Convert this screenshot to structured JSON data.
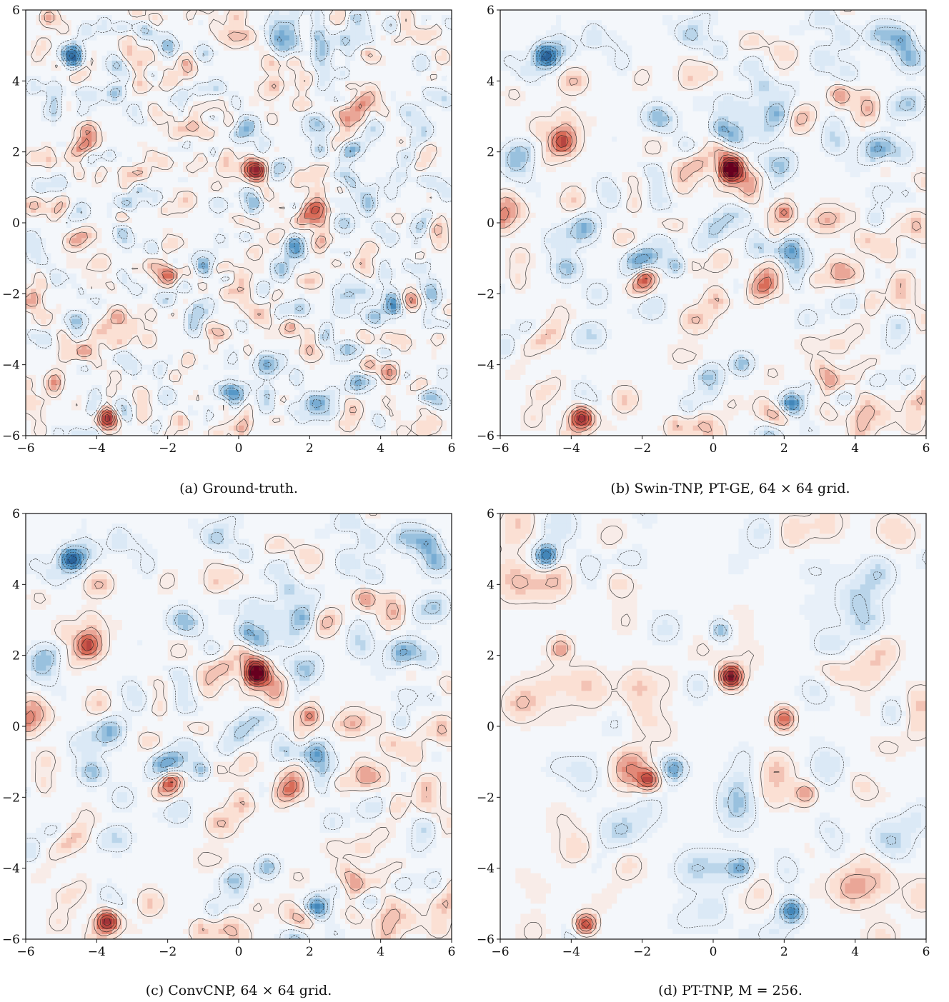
{
  "colors": {
    "blue_dark": "#08306b",
    "blue": "#4a90c2",
    "blue_light": "#dbe9f6",
    "neutral": "#f4f7fb",
    "red_light": "#fbe0d4",
    "red": "#d6604d",
    "red_dark": "#67001f",
    "contour": "#222222"
  },
  "chart_data": [
    {
      "type": "heatmap",
      "title": "(a) Ground-truth.",
      "xlim": [
        -6,
        6
      ],
      "ylim": [
        -6,
        6
      ],
      "xticks": [
        "−6",
        "−4",
        "−2",
        "0",
        "2",
        "4",
        "6"
      ],
      "yticks": [
        "−6",
        "−4",
        "−2",
        "0",
        "2",
        "4",
        "6"
      ],
      "smoothness": "high-frequency",
      "features": [
        {
          "x": -4.7,
          "y": 4.7,
          "value": -2.6
        },
        {
          "x": 0.5,
          "y": 1.5,
          "value": 3.0
        },
        {
          "x": -3.7,
          "y": -5.5,
          "value": 2.6
        },
        {
          "x": -1.9,
          "y": -1.5,
          "value": 2.0
        },
        {
          "x": 2.2,
          "y": -5.1,
          "value": -2.0
        },
        {
          "x": -4.3,
          "y": 2.3,
          "value": 1.6
        },
        {
          "x": 2.0,
          "y": 0.3,
          "value": 1.4
        },
        {
          "x": -1.0,
          "y": -1.2,
          "value": -1.4
        },
        {
          "x": 0.8,
          "y": -4.0,
          "value": -1.4
        },
        {
          "x": 0.2,
          "y": 2.7,
          "value": -1.2
        },
        {
          "x": 3.6,
          "y": 3.6,
          "value": 1.3
        }
      ]
    },
    {
      "type": "heatmap",
      "title": "(b) Swin-TNP, PT-GE, 64 × 64 grid.",
      "xlim": [
        -6,
        6
      ],
      "ylim": [
        -6,
        6
      ],
      "xticks": [
        "−6",
        "−4",
        "−2",
        "0",
        "2",
        "4",
        "6"
      ],
      "yticks": [
        "−6",
        "−4",
        "−2",
        "0",
        "2",
        "4",
        "6"
      ],
      "smoothness": "medium",
      "features": [
        {
          "x": -4.7,
          "y": 4.7,
          "value": -2.6
        },
        {
          "x": 0.5,
          "y": 1.5,
          "value": 3.0
        },
        {
          "x": -3.7,
          "y": -5.5,
          "value": 2.6
        },
        {
          "x": -1.9,
          "y": -1.5,
          "value": 2.0
        },
        {
          "x": 2.2,
          "y": -5.1,
          "value": -2.0
        },
        {
          "x": -4.3,
          "y": 2.3,
          "value": 1.6
        },
        {
          "x": 2.0,
          "y": 0.3,
          "value": 1.4
        },
        {
          "x": -1.0,
          "y": -1.2,
          "value": -1.4
        },
        {
          "x": 0.8,
          "y": -4.0,
          "value": -1.4
        },
        {
          "x": 0.2,
          "y": 2.7,
          "value": -1.2
        },
        {
          "x": 3.6,
          "y": 3.6,
          "value": 1.3
        }
      ]
    },
    {
      "type": "heatmap",
      "title": "(c) ConvCNP, 64 × 64 grid.",
      "xlim": [
        -6,
        6
      ],
      "ylim": [
        -6,
        6
      ],
      "xticks": [
        "−6",
        "−4",
        "−2",
        "0",
        "2",
        "4",
        "6"
      ],
      "yticks": [
        "−6",
        "−4",
        "−2",
        "0",
        "2",
        "4",
        "6"
      ],
      "smoothness": "medium",
      "features": [
        {
          "x": -4.7,
          "y": 4.7,
          "value": -2.6
        },
        {
          "x": 0.5,
          "y": 1.5,
          "value": 3.0
        },
        {
          "x": -3.7,
          "y": -5.5,
          "value": 2.6
        },
        {
          "x": -1.9,
          "y": -1.5,
          "value": 2.0
        },
        {
          "x": 2.2,
          "y": -5.1,
          "value": -2.0
        },
        {
          "x": -4.3,
          "y": 2.3,
          "value": 1.6
        },
        {
          "x": 2.0,
          "y": 0.3,
          "value": 1.4
        },
        {
          "x": -1.0,
          "y": -1.2,
          "value": -1.4
        },
        {
          "x": 0.8,
          "y": -4.0,
          "value": -1.4
        },
        {
          "x": 0.2,
          "y": 2.7,
          "value": -1.2
        },
        {
          "x": 3.6,
          "y": 3.6,
          "value": 1.3
        }
      ]
    },
    {
      "type": "heatmap",
      "title": "(d) PT-TNP, M = 256.",
      "xlim": [
        -6,
        6
      ],
      "ylim": [
        -6,
        6
      ],
      "xticks": [
        "−6",
        "−4",
        "−2",
        "0",
        "2",
        "4",
        "6"
      ],
      "yticks": [
        "−6",
        "−4",
        "−2",
        "0",
        "2",
        "4",
        "6"
      ],
      "smoothness": "low",
      "features": [
        {
          "x": -4.7,
          "y": 4.8,
          "value": -2.3
        },
        {
          "x": 0.5,
          "y": 1.4,
          "value": 3.0
        },
        {
          "x": -3.6,
          "y": -5.6,
          "value": 2.6
        },
        {
          "x": -1.8,
          "y": -1.5,
          "value": 2.2
        },
        {
          "x": 2.2,
          "y": -5.2,
          "value": -2.0
        },
        {
          "x": -4.3,
          "y": 2.2,
          "value": 1.2
        },
        {
          "x": 2.0,
          "y": 0.2,
          "value": 1.8
        },
        {
          "x": -1.1,
          "y": -1.2,
          "value": -1.4
        },
        {
          "x": 0.8,
          "y": -4.0,
          "value": -1.2
        },
        {
          "x": 0.2,
          "y": 2.7,
          "value": -1.4
        },
        {
          "x": 2.6,
          "y": -1.9,
          "value": 1.2
        }
      ]
    }
  ]
}
